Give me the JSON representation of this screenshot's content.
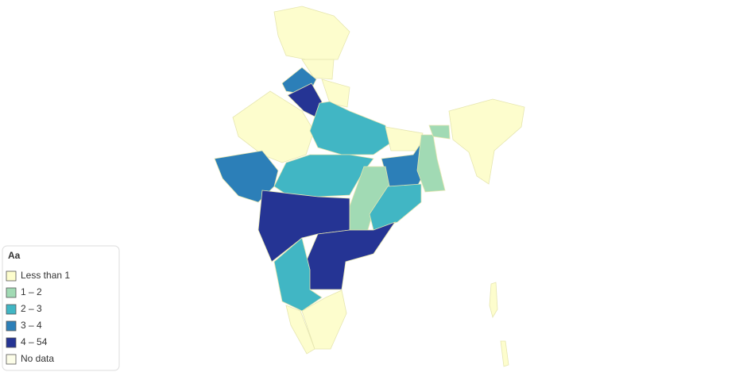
{
  "legend": {
    "title": "Aa",
    "items": [
      {
        "label": "Less than 1",
        "color": "#fdfdcd"
      },
      {
        "label": "1 – 2",
        "color": "#a1dab4"
      },
      {
        "label": "2 – 3",
        "color": "#41b6c4"
      },
      {
        "label": "3 – 4",
        "color": "#2c7fb8"
      },
      {
        "label": "4 – 54",
        "color": "#253494"
      },
      {
        "label": "No data",
        "color": "#fcfde8"
      }
    ]
  }
}
